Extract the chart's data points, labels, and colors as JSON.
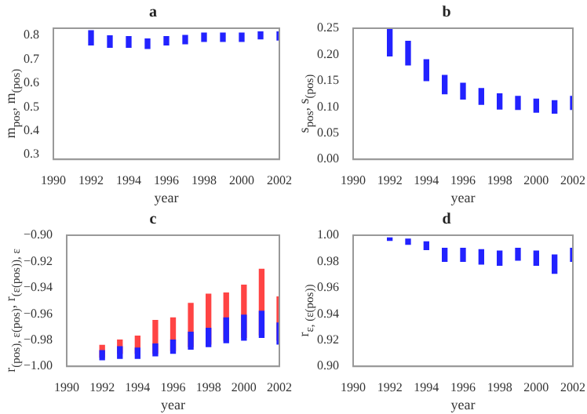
{
  "chart_data": [
    {
      "type": "bar",
      "title": "a",
      "xlabel": "year",
      "ylabel": "m$_{pos}$, m$_{(pos)}$",
      "x": [
        1992,
        1993,
        1994,
        1995,
        1996,
        1997,
        1998,
        1999,
        2000,
        2001,
        2002
      ],
      "xlim": [
        1990,
        2002
      ],
      "xticks": [
        1990,
        1992,
        1994,
        1996,
        1998,
        2000,
        2002
      ],
      "ylim": [
        0.28,
        0.83
      ],
      "yticks": [
        0.3,
        0.4,
        0.5,
        0.6,
        0.7,
        0.8
      ],
      "series": [
        {
          "color": "#2222ff",
          "base": [
            0.76,
            0.75,
            0.75,
            0.745,
            0.76,
            0.765,
            0.775,
            0.775,
            0.775,
            0.785,
            0.78
          ],
          "values": [
            0.06,
            0.048,
            0.045,
            0.04,
            0.035,
            0.035,
            0.035,
            0.035,
            0.035,
            0.03,
            0.035
          ]
        }
      ]
    },
    {
      "type": "bar",
      "title": "b",
      "xlabel": "year",
      "ylabel": "s$_{pos}$, s$_{(pos)}$",
      "x": [
        1992,
        1993,
        1994,
        1995,
        1996,
        1997,
        1998,
        1999,
        2000,
        2001,
        2002
      ],
      "xlim": [
        1990,
        2002
      ],
      "xticks": [
        1990,
        1992,
        1994,
        1996,
        1998,
        2000,
        2002
      ],
      "ylim": [
        0,
        0.25
      ],
      "yticks": [
        {
          "value": 0,
          "label": "0.00"
        },
        {
          "value": 0.05,
          "label": "0.05"
        },
        {
          "value": 0.1,
          "label": "0.10"
        },
        {
          "value": 0.15,
          "label": "0.15"
        },
        {
          "value": 0.2,
          "label": "0.20"
        },
        {
          "value": 0.25,
          "label": "0.25"
        }
      ],
      "series": [
        {
          "color": "#2222ff",
          "base": [
            0.197,
            0.18,
            0.15,
            0.125,
            0.115,
            0.105,
            0.096,
            0.095,
            0.09,
            0.088,
            0.095
          ],
          "values": [
            0.053,
            0.045,
            0.04,
            0.035,
            0.03,
            0.03,
            0.029,
            0.025,
            0.025,
            0.024,
            0.025
          ]
        }
      ]
    },
    {
      "type": "bar",
      "title": "c",
      "xlabel": "year",
      "ylabel": "r$_{(pos), ε(pos)}$, r$_{(ε(pos)), ε}$",
      "x": [
        1992,
        1993,
        1994,
        1995,
        1996,
        1997,
        1998,
        1999,
        2000,
        2001,
        2002
      ],
      "xlim": [
        1990,
        2002
      ],
      "xticks": [
        1990,
        1992,
        1994,
        1996,
        1998,
        2000,
        2002
      ],
      "ylim": [
        -1,
        -0.9
      ],
      "yticks": [
        {
          "value": -1,
          "label": "−1.00"
        },
        {
          "value": -0.98,
          "label": "−0.98"
        },
        {
          "value": -0.96,
          "label": "−0.96"
        },
        {
          "value": -0.94,
          "label": "−0.94"
        },
        {
          "value": -0.92,
          "label": "−0.92"
        },
        {
          "value": -0.9,
          "label": "−0.90"
        }
      ],
      "series": [
        {
          "color": "#ff4444",
          "base": [
            -0.993,
            -0.99,
            -0.99,
            -0.99,
            -0.988,
            -0.985,
            -0.983,
            -0.98,
            -0.978,
            -0.976,
            -0.98
          ],
          "values": [
            0.009,
            0.01,
            0.013,
            0.025,
            0.025,
            0.033,
            0.038,
            0.036,
            0.04,
            0.05,
            0.033
          ]
        },
        {
          "color": "#2222ff",
          "base": [
            -0.995,
            -0.994,
            -0.994,
            -0.992,
            -0.99,
            -0.987,
            -0.985,
            -0.982,
            -0.98,
            -0.978,
            -0.983
          ],
          "values": [
            0.007,
            0.009,
            0.008,
            0.009,
            0.01,
            0.013,
            0.014,
            0.019,
            0.019,
            0.02,
            0.016
          ]
        }
      ]
    },
    {
      "type": "bar",
      "title": "d",
      "xlabel": "year",
      "ylabel": "r$_{ε, (ε(pos))}$",
      "x": [
        1992,
        1993,
        1994,
        1995,
        1996,
        1997,
        1998,
        1999,
        2000,
        2001,
        2002
      ],
      "xlim": [
        1990,
        2002
      ],
      "xticks": [
        1990,
        1992,
        1994,
        1996,
        1998,
        2000,
        2002
      ],
      "ylim": [
        0.9,
        1
      ],
      "yticks": [
        {
          "value": 0.9,
          "label": "0.90"
        },
        {
          "value": 0.92,
          "label": "0.92"
        },
        {
          "value": 0.94,
          "label": "0.94"
        },
        {
          "value": 0.96,
          "label": "0.96"
        },
        {
          "value": 0.98,
          "label": "0.98"
        },
        {
          "value": 1,
          "label": "1.00"
        }
      ],
      "series": [
        {
          "color": "#2222ff",
          "base": [
            0.996,
            0.993,
            0.989,
            0.98,
            0.98,
            0.978,
            0.977,
            0.981,
            0.977,
            0.971,
            0.98
          ],
          "values": [
            0.002,
            0.004,
            0.006,
            0.01,
            0.01,
            0.011,
            0.011,
            0.009,
            0.011,
            0.014,
            0.01
          ]
        }
      ]
    }
  ]
}
